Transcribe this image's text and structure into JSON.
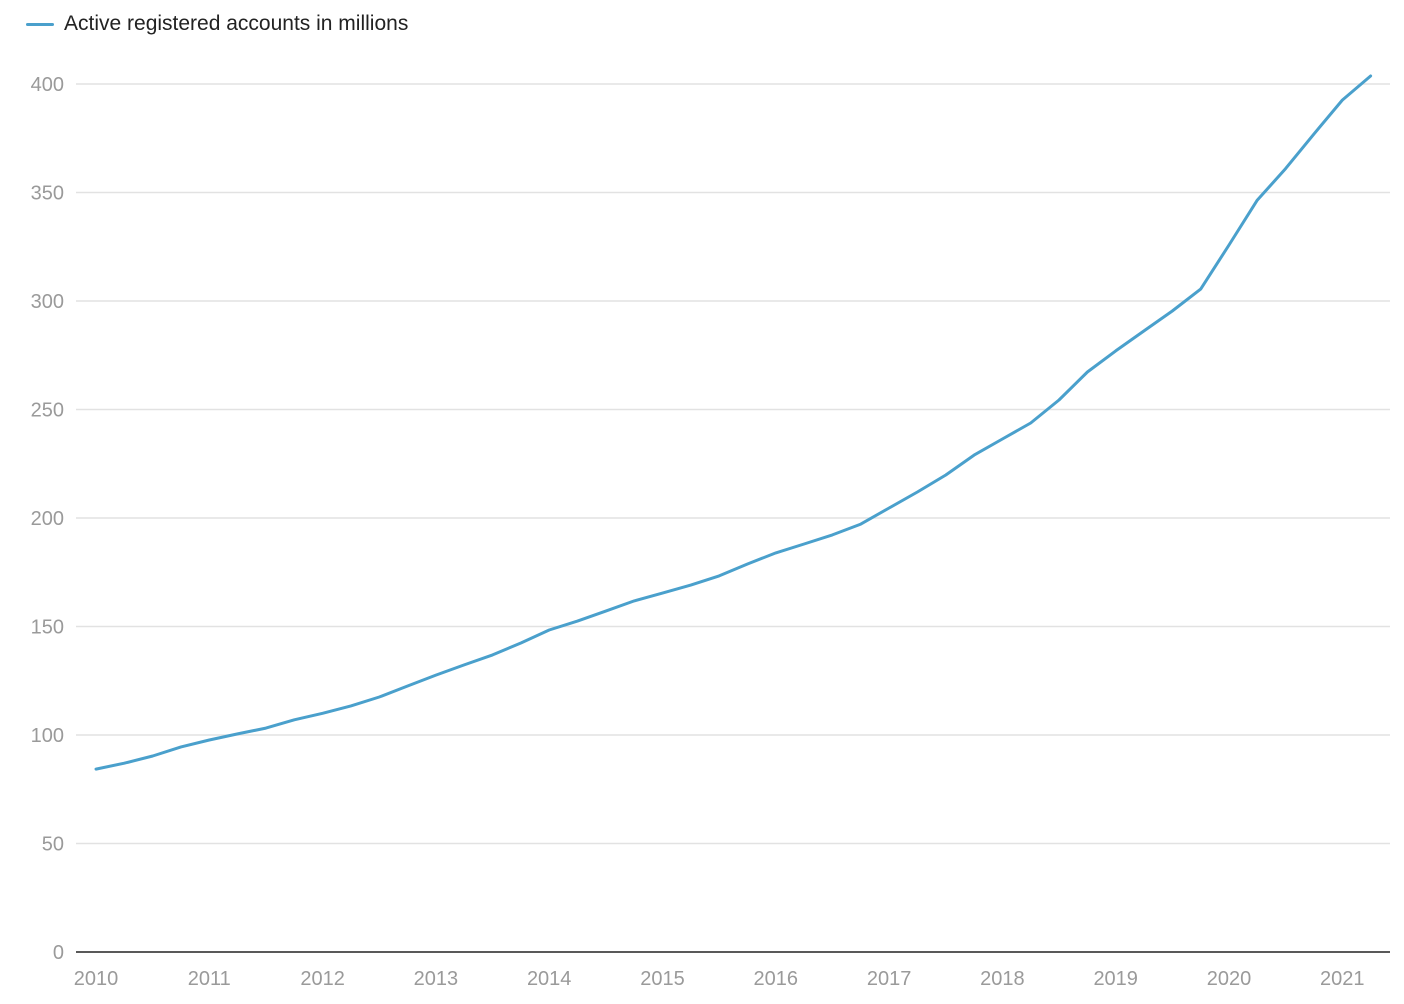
{
  "chart_data": {
    "type": "line",
    "title": "",
    "xlabel": "",
    "ylabel": "",
    "ylim": [
      0,
      400
    ],
    "xlim": [
      2010,
      2021.25
    ],
    "grid": true,
    "legend_position": "top-left",
    "y_ticks": [
      "0",
      "50",
      "100",
      "150",
      "200",
      "250",
      "300",
      "350",
      "400"
    ],
    "x_ticks": [
      "2010",
      "2011",
      "2012",
      "2013",
      "2014",
      "2015",
      "2016",
      "2017",
      "2018",
      "2019",
      "2020",
      "2021"
    ],
    "series": [
      {
        "name": "Active registered accounts in millions",
        "color": "#4aa0cc",
        "x": [
          2010,
          2010.25,
          2010.5,
          2010.75,
          2011,
          2011.25,
          2011.5,
          2011.75,
          2012,
          2012.25,
          2012.5,
          2012.75,
          2013,
          2013.25,
          2013.5,
          2013.75,
          2014,
          2014.25,
          2014.5,
          2014.75,
          2015,
          2015.25,
          2015.5,
          2015.75,
          2016,
          2016.25,
          2016.5,
          2016.75,
          2017,
          2017.25,
          2017.5,
          2017.75,
          2018,
          2018.25,
          2018.5,
          2018.75,
          2019,
          2019.25,
          2019.5,
          2019.75,
          2020,
          2020.25,
          2020.5,
          2020.75,
          2021,
          2021.25
        ],
        "values": [
          84.3,
          87,
          90.3,
          94.5,
          97.7,
          100.5,
          103.2,
          107,
          110,
          113.4,
          117.5,
          122.6,
          127.6,
          132.3,
          136.9,
          142.4,
          148.4,
          152.5,
          157.1,
          161.8,
          165.4,
          169.1,
          173.3,
          178.8,
          183.9,
          188,
          192.2,
          197.2,
          204.6,
          212,
          219.8,
          229,
          236.4,
          243.8,
          254.4,
          267.3,
          277,
          286.2,
          295.4,
          305.5,
          325.8,
          346.5,
          361,
          377,
          392.6,
          403.7
        ]
      }
    ]
  }
}
